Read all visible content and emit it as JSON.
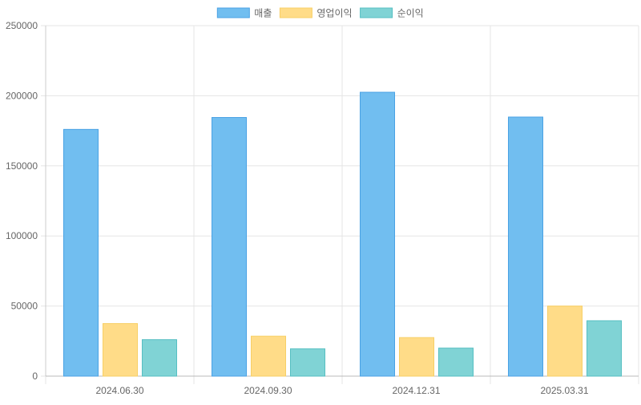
{
  "chart_data": {
    "type": "bar",
    "categories": [
      "2024.06.30",
      "2024.09.30",
      "2024.12.31",
      "2025.03.31"
    ],
    "series": [
      {
        "name": "매출",
        "values": [
          176000,
          184500,
          202500,
          184800
        ],
        "fill": "#71bef0",
        "stroke": "#4aa2e4"
      },
      {
        "name": "영업이익",
        "values": [
          37500,
          28500,
          27500,
          50000
        ],
        "fill": "#ffdc88",
        "stroke": "#f7cf66"
      },
      {
        "name": "순이익",
        "values": [
          26000,
          19500,
          20000,
          39500
        ],
        "fill": "#80d3d5",
        "stroke": "#56bfc2"
      }
    ],
    "ylim": [
      0,
      250000
    ],
    "yticks": [
      0,
      50000,
      100000,
      150000,
      200000,
      250000
    ],
    "ytick_labels": [
      "0",
      "50000",
      "100000",
      "150000",
      "200000",
      "250000"
    ],
    "grid": true,
    "legend_position": "top-center",
    "title": "",
    "xlabel": "",
    "ylabel": ""
  }
}
